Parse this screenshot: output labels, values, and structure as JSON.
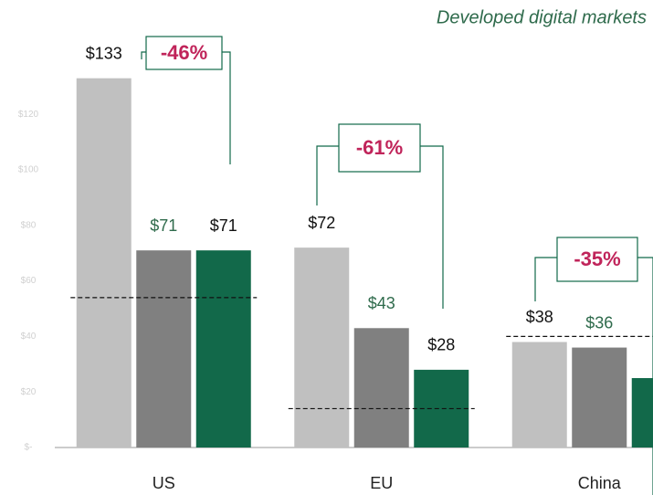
{
  "chart_data": {
    "type": "bar",
    "subtitle": "Developed digital markets",
    "categories": [
      "US",
      "EU",
      "China"
    ],
    "series": [
      {
        "color": "#c0c0c0",
        "values": [
          133,
          72,
          38
        ],
        "value_labels": [
          "$133",
          "$72",
          "$38"
        ]
      },
      {
        "color": "#808080",
        "values": [
          71,
          43,
          36
        ],
        "value_labels": [
          "$71",
          "$43",
          "$36"
        ]
      },
      {
        "color": "#12694a",
        "values": [
          71,
          28,
          25
        ],
        "value_labels": [
          "$71",
          "$28",
          "$"
        ]
      }
    ],
    "ylim": [
      0,
      160
    ],
    "yticks": [
      {
        "value": 0,
        "label": "$-"
      },
      {
        "value": 20,
        "label": "$20"
      },
      {
        "value": 40,
        "label": "$40"
      },
      {
        "value": 60,
        "label": "$60"
      },
      {
        "value": 80,
        "label": "$80"
      },
      {
        "value": 100,
        "label": "$100"
      },
      {
        "value": 120,
        "label": "$120"
      }
    ],
    "annotations": [
      {
        "label": "-46%",
        "reference": 54
      },
      {
        "label": "-61%",
        "reference": 14
      },
      {
        "label": "-35%",
        "reference": 40
      }
    ]
  }
}
